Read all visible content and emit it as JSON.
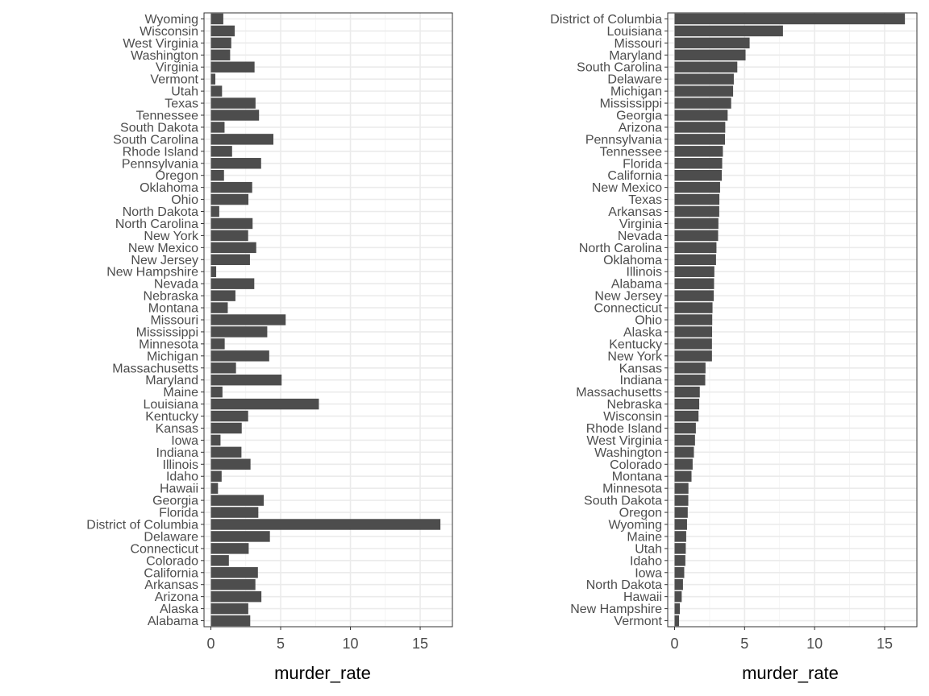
{
  "bar_color": "#4d4d4d",
  "grid_color": "#ebebeb",
  "chart_data": [
    {
      "type": "bar",
      "orientation": "horizontal",
      "order": "reverse alphabetical",
      "xlabel": "murder_rate",
      "ylabel": "",
      "xlim": [
        0,
        16.5
      ],
      "xticks": [
        0,
        5,
        10,
        15
      ],
      "grid": true,
      "categories": [
        "Wyoming",
        "Wisconsin",
        "West Virginia",
        "Washington",
        "Virginia",
        "Vermont",
        "Utah",
        "Texas",
        "Tennessee",
        "South Dakota",
        "South Carolina",
        "Rhode Island",
        "Pennsylvania",
        "Oregon",
        "Oklahoma",
        "Ohio",
        "North Dakota",
        "North Carolina",
        "New York",
        "New Mexico",
        "New Jersey",
        "New Hampshire",
        "Nevada",
        "Nebraska",
        "Montana",
        "Missouri",
        "Mississippi",
        "Minnesota",
        "Michigan",
        "Massachusetts",
        "Maryland",
        "Maine",
        "Louisiana",
        "Kentucky",
        "Kansas",
        "Iowa",
        "Indiana",
        "Illinois",
        "Idaho",
        "Hawaii",
        "Georgia",
        "Florida",
        "District of Columbia",
        "Delaware",
        "Connecticut",
        "Colorado",
        "California",
        "Arkansas",
        "Arizona",
        "Alaska",
        "Alabama"
      ],
      "values": [
        0.89,
        1.71,
        1.46,
        1.38,
        3.13,
        0.32,
        0.8,
        3.2,
        3.45,
        0.98,
        4.48,
        1.52,
        3.6,
        0.94,
        2.96,
        2.69,
        0.6,
        2.99,
        2.67,
        3.25,
        2.8,
        0.38,
        3.11,
        1.76,
        1.21,
        5.36,
        4.04,
        0.99,
        4.18,
        1.8,
        5.07,
        0.83,
        7.74,
        2.67,
        2.21,
        0.69,
        2.19,
        2.84,
        0.77,
        0.51,
        3.79,
        3.4,
        16.45,
        4.23,
        2.71,
        1.29,
        3.37,
        3.19,
        3.62,
        2.68,
        2.82
      ]
    },
    {
      "type": "bar",
      "orientation": "horizontal",
      "order": "descending by value",
      "xlabel": "murder_rate",
      "ylabel": "",
      "xlim": [
        0,
        16.5
      ],
      "xticks": [
        0,
        5,
        10,
        15
      ],
      "grid": true,
      "categories": [
        "District of Columbia",
        "Louisiana",
        "Missouri",
        "Maryland",
        "South Carolina",
        "Delaware",
        "Michigan",
        "Mississippi",
        "Georgia",
        "Arizona",
        "Pennsylvania",
        "Tennessee",
        "Florida",
        "California",
        "New Mexico",
        "Texas",
        "Arkansas",
        "Virginia",
        "Nevada",
        "North Carolina",
        "Oklahoma",
        "Illinois",
        "Alabama",
        "New Jersey",
        "Connecticut",
        "Ohio",
        "Alaska",
        "Kentucky",
        "New York",
        "Kansas",
        "Indiana",
        "Massachusetts",
        "Nebraska",
        "Wisconsin",
        "Rhode Island",
        "West Virginia",
        "Washington",
        "Colorado",
        "Montana",
        "Minnesota",
        "South Dakota",
        "Oregon",
        "Wyoming",
        "Maine",
        "Utah",
        "Idaho",
        "Iowa",
        "North Dakota",
        "Hawaii",
        "New Hampshire",
        "Vermont"
      ],
      "values": [
        16.45,
        7.74,
        5.36,
        5.07,
        4.48,
        4.23,
        4.18,
        4.04,
        3.79,
        3.62,
        3.6,
        3.45,
        3.4,
        3.37,
        3.25,
        3.2,
        3.19,
        3.13,
        3.11,
        2.99,
        2.96,
        2.84,
        2.82,
        2.8,
        2.71,
        2.69,
        2.68,
        2.67,
        2.67,
        2.21,
        2.19,
        1.8,
        1.76,
        1.71,
        1.52,
        1.46,
        1.38,
        1.29,
        1.21,
        0.99,
        0.98,
        0.94,
        0.89,
        0.83,
        0.8,
        0.77,
        0.69,
        0.6,
        0.51,
        0.38,
        0.32
      ]
    }
  ]
}
